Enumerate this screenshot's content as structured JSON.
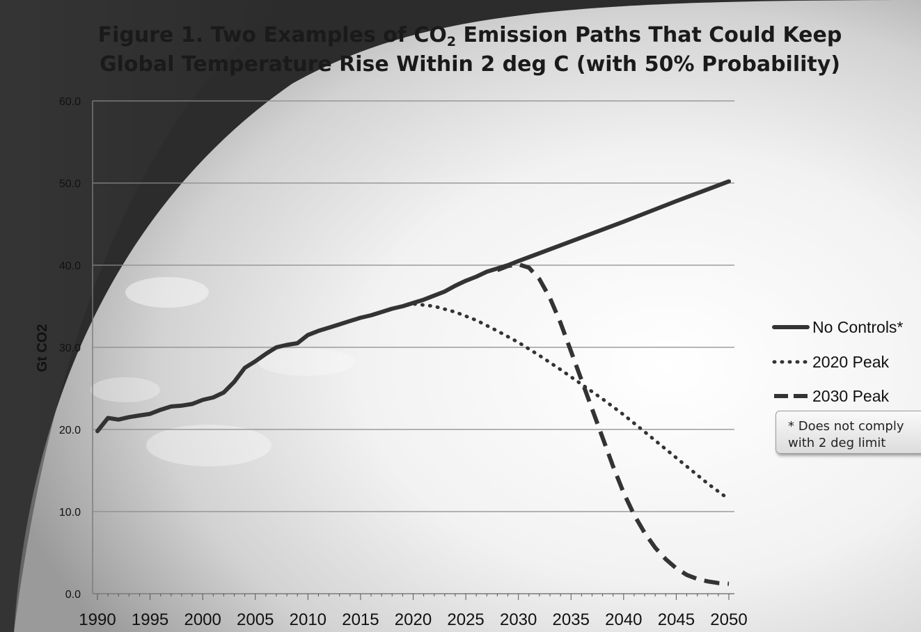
{
  "chart_data": {
    "type": "line",
    "title_pre": "Figure 1. Two Examples of CO",
    "title_sub": "2",
    "title_post": " Emission Paths That Could Keep Global Temperature Rise Within 2 deg C (with 50% Probability)",
    "xlabel": "",
    "ylabel": "Gt CO2",
    "xlim": [
      1990,
      2050
    ],
    "ylim": [
      0,
      60
    ],
    "xticks": [
      1990,
      1995,
      2000,
      2005,
      2010,
      2015,
      2020,
      2025,
      2030,
      2035,
      2040,
      2045,
      2050
    ],
    "yticks": [
      "0.0",
      "10.0",
      "20.0",
      "30.0",
      "40.0",
      "50.0",
      "60.0"
    ],
    "grid": true,
    "legend_position": "right",
    "series": [
      {
        "name": "No Controls*",
        "style": "solid",
        "x": [
          1990,
          1991,
          1992,
          1993,
          1994,
          1995,
          1996,
          1997,
          1998,
          1999,
          2000,
          2001,
          2002,
          2003,
          2004,
          2005,
          2006,
          2007,
          2008,
          2009,
          2010,
          2011,
          2012,
          2013,
          2014,
          2015,
          2016,
          2017,
          2018,
          2019,
          2020,
          2021,
          2022,
          2023,
          2024,
          2025,
          2026,
          2027,
          2028,
          2029,
          2030,
          2035,
          2040,
          2045,
          2050
        ],
        "y": [
          19.8,
          21.4,
          21.2,
          21.5,
          21.7,
          21.9,
          22.4,
          22.8,
          22.9,
          23.1,
          23.6,
          23.9,
          24.5,
          25.8,
          27.5,
          28.3,
          29.2,
          30.0,
          30.3,
          30.5,
          31.5,
          32.0,
          32.4,
          32.8,
          33.2,
          33.6,
          33.9,
          34.3,
          34.7,
          35.0,
          35.4,
          35.8,
          36.3,
          36.8,
          37.5,
          38.1,
          38.6,
          39.2,
          39.6,
          40.0,
          40.5,
          42.9,
          45.3,
          47.8,
          50.2
        ]
      },
      {
        "name": "2020 Peak",
        "style": "dotted",
        "x": [
          2018,
          2020,
          2022,
          2024,
          2026,
          2028,
          2030,
          2032,
          2034,
          2036,
          2038,
          2040,
          2042,
          2044,
          2046,
          2048,
          2050
        ],
        "y": [
          34.7,
          35.3,
          35.0,
          34.3,
          33.3,
          32.0,
          30.6,
          29.0,
          27.3,
          25.5,
          23.7,
          21.8,
          19.7,
          17.6,
          15.5,
          13.4,
          11.5
        ]
      },
      {
        "name": "2030 Peak",
        "style": "dashed",
        "x": [
          2028,
          2029,
          2030,
          2031,
          2032,
          2033,
          2034,
          2035,
          2036,
          2037,
          2038,
          2039,
          2040,
          2041,
          2042,
          2043,
          2044,
          2045,
          2046,
          2047,
          2048,
          2049,
          2050
        ],
        "y": [
          39.4,
          39.9,
          40.1,
          39.7,
          38.3,
          36.0,
          33.0,
          29.5,
          26.0,
          22.5,
          19.0,
          15.5,
          12.3,
          9.6,
          7.4,
          5.6,
          4.2,
          3.1,
          2.3,
          1.8,
          1.5,
          1.3,
          1.2
        ]
      }
    ],
    "annotation": "* Does not comply\nwith 2 deg limit"
  }
}
